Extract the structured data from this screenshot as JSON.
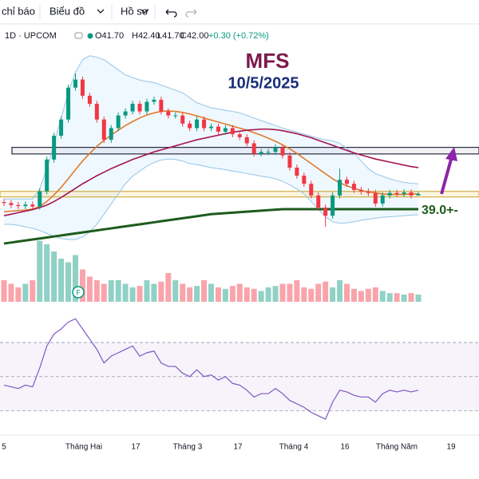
{
  "toolbar": {
    "items": [
      "chỉ báo",
      "Biểu đồ",
      "Hồ sơ"
    ]
  },
  "legend": {
    "symbol": "1D · UPCOM",
    "open": "O41.70",
    "high": "H42.40",
    "low": "L41.70",
    "close": "C42.00",
    "change": "+0.30 (+0.72%)"
  },
  "chart_data": {
    "type": "candlestick",
    "title": "MFS",
    "subtitle": "10/5/2025",
    "annotation": "39.0+-",
    "marker": "F",
    "x_labels": [
      "5",
      "Tháng Hai",
      "17",
      "Tháng 3",
      "17",
      "Tháng 4",
      "16",
      "Tháng Năm",
      "19"
    ],
    "ylim": [
      33,
      74
    ],
    "up_color": "#089981",
    "down_color": "#f23645",
    "open": [
      40.4,
      40.2,
      39.8,
      39.6,
      39.9,
      39.5,
      42.5,
      48.8,
      53.5,
      56.7,
      63.0,
      64.6,
      61.4,
      59.8,
      56.7,
      52.7,
      55.0,
      57.5,
      58.3,
      59.8,
      58.3,
      60.2,
      60.6,
      58.3,
      57.5,
      57.5,
      55.9,
      55.0,
      56.7,
      55.0,
      55.3,
      54.3,
      55.0,
      53.8,
      53.2,
      52.0,
      50.0,
      50.3,
      50.3,
      51.2,
      49.6,
      47.2,
      45.6,
      44.0,
      41.7,
      39.3,
      37.7,
      41.7,
      44.8,
      44.0,
      42.8,
      42.5,
      42.2,
      40.1,
      41.7,
      42.2,
      42.0,
      42.3,
      41.7
    ],
    "high": [
      41.0,
      40.8,
      40.4,
      40.5,
      40.5,
      43.1,
      49.4,
      54.1,
      57.3,
      63.6,
      65.8,
      65.2,
      62.0,
      60.4,
      57.3,
      55.6,
      58.1,
      58.9,
      60.4,
      60.4,
      60.8,
      61.2,
      61.2,
      58.9,
      58.1,
      58.1,
      56.5,
      57.3,
      57.3,
      55.9,
      55.9,
      55.6,
      55.6,
      54.4,
      53.8,
      52.6,
      50.9,
      50.9,
      51.8,
      51.8,
      50.2,
      47.8,
      46.2,
      44.6,
      42.3,
      39.9,
      42.3,
      47.0,
      45.4,
      44.6,
      43.4,
      43.1,
      42.8,
      42.3,
      42.8,
      42.8,
      42.9,
      42.9,
      42.4
    ],
    "low": [
      39.6,
      39.2,
      39.0,
      39.0,
      38.9,
      38.9,
      41.9,
      48.2,
      52.9,
      56.1,
      62.4,
      60.8,
      59.2,
      56.1,
      52.1,
      52.1,
      54.4,
      56.9,
      57.7,
      57.7,
      57.7,
      59.6,
      57.7,
      56.9,
      56.9,
      55.3,
      54.4,
      54.4,
      54.4,
      54.4,
      53.7,
      53.7,
      53.2,
      52.6,
      51.4,
      49.4,
      49.4,
      49.7,
      49.7,
      49.0,
      46.6,
      45.0,
      43.4,
      41.1,
      38.7,
      35.5,
      37.1,
      41.1,
      43.4,
      42.2,
      41.9,
      41.6,
      39.5,
      39.5,
      41.1,
      41.4,
      41.4,
      41.1,
      41.7
    ],
    "close": [
      40.2,
      39.8,
      39.6,
      39.9,
      39.5,
      42.5,
      48.8,
      53.5,
      56.7,
      63.0,
      64.6,
      61.4,
      59.8,
      56.7,
      52.7,
      55.0,
      57.5,
      58.3,
      59.8,
      58.3,
      60.2,
      60.6,
      58.3,
      57.5,
      57.5,
      55.9,
      55.0,
      56.7,
      55.0,
      55.3,
      54.3,
      55.0,
      53.8,
      53.2,
      52.0,
      50.0,
      50.3,
      50.3,
      51.2,
      49.6,
      47.2,
      45.6,
      44.0,
      41.7,
      39.3,
      37.7,
      41.7,
      44.8,
      44.0,
      42.8,
      42.5,
      42.2,
      40.1,
      41.7,
      42.2,
      42.0,
      42.3,
      41.7,
      42.0
    ],
    "lines": [
      {
        "color": "#93c5e8",
        "values": [
          41.0,
          41.0,
          41.0,
          41.0,
          41.0,
          43.0,
          47.0,
          52.0,
          57.0,
          62.0,
          66.0,
          68.5,
          69.3,
          69.0,
          68.5,
          67.5,
          66.5,
          65.5,
          65.0,
          64.5,
          64.2,
          64.0,
          63.5,
          63.0,
          62.5,
          62.0,
          61.0,
          60.0,
          59.5,
          59.0,
          58.8,
          58.5,
          58.3,
          58.0,
          57.5,
          57.0,
          56.5,
          56.0,
          55.5,
          55.0,
          54.6,
          54.2,
          53.8,
          53.4,
          53.0,
          52.7,
          52.5,
          52.0,
          51.0,
          50.0,
          48.5,
          47.0,
          46.0,
          45.5,
          45.0,
          44.6,
          44.3,
          44.1,
          44.0
        ]
      },
      {
        "color": "#93c5e8",
        "values": [
          36.0,
          36.0,
          35.8,
          35.5,
          35.2,
          34.8,
          34.2,
          33.6,
          33.2,
          33.0,
          33.0,
          33.5,
          34.5,
          36.0,
          38.0,
          40.0,
          42.0,
          44.0,
          45.5,
          46.5,
          47.5,
          48.2,
          48.7,
          48.9,
          48.8,
          48.5,
          48.0,
          47.8,
          47.5,
          47.2,
          47.0,
          46.8,
          46.5,
          46.3,
          46.0,
          45.8,
          45.5,
          45.3,
          45.0,
          44.5,
          43.8,
          43.0,
          42.0,
          40.5,
          39.0,
          37.5,
          36.5,
          36.2,
          36.3,
          36.5,
          36.8,
          37.0,
          37.2,
          37.4,
          37.5,
          37.6,
          37.7,
          37.8,
          37.9
        ]
      },
      {
        "color": "#e07b2a",
        "values": [
          38.5,
          38.6,
          38.7,
          38.8,
          39.0,
          39.5,
          40.5,
          41.8,
          43.3,
          45.0,
          46.8,
          48.5,
          50.0,
          51.4,
          52.6,
          53.6,
          54.6,
          55.5,
          56.3,
          57.0,
          57.6,
          58.0,
          58.3,
          58.4,
          58.3,
          58.1,
          57.8,
          57.4,
          57.0,
          56.6,
          56.2,
          55.8,
          55.4,
          55.0,
          54.6,
          54.1,
          53.6,
          53.0,
          52.4,
          51.7,
          50.9,
          50.0,
          49.0,
          48.0,
          47.0,
          46.0,
          45.0,
          44.2,
          43.6,
          43.1,
          42.7,
          42.4,
          42.2,
          42.0,
          41.9,
          41.9,
          41.9,
          42.0,
          42.0
        ]
      },
      {
        "color": "#a3144f",
        "values": [
          37.7,
          38.0,
          38.3,
          38.6,
          38.9,
          39.3,
          39.8,
          40.5,
          41.3,
          42.2,
          43.1,
          44.0,
          44.8,
          45.6,
          46.3,
          47.0,
          47.6,
          48.2,
          48.8,
          49.3,
          49.8,
          50.3,
          50.7,
          51.1,
          51.5,
          51.9,
          52.3,
          52.7,
          53.0,
          53.3,
          53.6,
          53.9,
          54.2,
          54.4,
          54.6,
          54.7,
          54.8,
          54.8,
          54.7,
          54.5,
          54.2,
          53.9,
          53.5,
          53.1,
          52.6,
          52.1,
          51.6,
          51.1,
          50.6,
          50.1,
          49.7,
          49.3,
          48.9,
          48.6,
          48.3,
          48.0,
          47.7,
          47.4,
          47.2
        ]
      },
      {
        "color": "#1e5b1e",
        "values": [
          32.2,
          32.4,
          32.6,
          32.8,
          33.0,
          33.2,
          33.4,
          33.6,
          33.8,
          34.0,
          34.2,
          34.4,
          34.6,
          34.8,
          35.0,
          35.2,
          35.4,
          35.6,
          35.8,
          36.0,
          36.2,
          36.4,
          36.6,
          36.8,
          37.0,
          37.2,
          37.4,
          37.6,
          37.8,
          38.0,
          38.1,
          38.2,
          38.3,
          38.4,
          38.5,
          38.6,
          38.7,
          38.8,
          38.9,
          39.0,
          39.0,
          39.0,
          39.0,
          39.0,
          39.0,
          39.0,
          39.0,
          39.0,
          39.0,
          39.0,
          39.0,
          39.0,
          39.0,
          39.0,
          39.0,
          39.0,
          39.0,
          39.0,
          39.0
        ]
      }
    ],
    "zones": [
      [
        49.9,
        51.2
      ],
      [
        41.4,
        42.5
      ]
    ],
    "volume": [
      30,
      25,
      20,
      25,
      30,
      85,
      80,
      70,
      60,
      55,
      65,
      45,
      35,
      30,
      25,
      30,
      30,
      25,
      20,
      22,
      30,
      25,
      28,
      40,
      30,
      25,
      20,
      22,
      30,
      25,
      20,
      18,
      22,
      25,
      20,
      18,
      15,
      20,
      22,
      25,
      25,
      30,
      20,
      18,
      25,
      28,
      20,
      30,
      25,
      18,
      15,
      18,
      20,
      15,
      12,
      12,
      10,
      12,
      10
    ],
    "volume_lim": [
      0,
      100
    ],
    "rsi": [
      45,
      44,
      43,
      45,
      44,
      55,
      68,
      75,
      78,
      82,
      84,
      78,
      72,
      66,
      58,
      62,
      64,
      66,
      68,
      62,
      64,
      65,
      58,
      56,
      56,
      52,
      50,
      54,
      50,
      51,
      48,
      50,
      46,
      45,
      42,
      38,
      40,
      40,
      43,
      40,
      36,
      34,
      32,
      29,
      27,
      25,
      35,
      42,
      41,
      39,
      38,
      38,
      35,
      40,
      42,
      41,
      42,
      41,
      42
    ],
    "rsi_lim": [
      18,
      93
    ],
    "rsi_levels": [
      70,
      50,
      30
    ],
    "rsi_color": "#7e57c2"
  }
}
